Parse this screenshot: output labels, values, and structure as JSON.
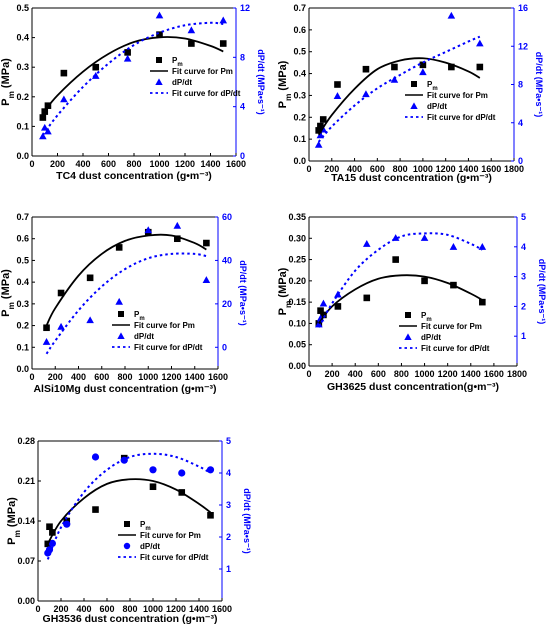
{
  "colors": {
    "pm": "#000000",
    "dpdt": "#0000ff",
    "axis": "#000000"
  },
  "chart_data": [
    {
      "type": "scatter",
      "xlabel": "TC4 dust concentration (g•m⁻³)",
      "ylabel": "Pm (MPa)",
      "ylabel_right": "dP/dt (MPa•s⁻¹)",
      "xlim": [
        0,
        1600
      ],
      "xticks": [
        0,
        200,
        400,
        600,
        800,
        1000,
        1200,
        1400,
        1600
      ],
      "ylim": [
        0,
        0.5
      ],
      "yticks": [
        0.0,
        0.1,
        0.2,
        0.3,
        0.4,
        0.5
      ],
      "ylim_right": [
        0,
        12
      ],
      "yticks_right": [
        0,
        4,
        8,
        12
      ],
      "legend": {
        "placement": "center-right",
        "pm": "Pm",
        "fit_pm": "Fit curve for Pm",
        "dpdt": "dP/dt",
        "fit_dpdt": "Fit curve for dP/dt"
      },
      "series": [
        {
          "name": "Pm",
          "axis": "left",
          "marker": "square",
          "x": [
            85,
            100,
            125,
            250,
            500,
            750,
            1000,
            1250,
            1500
          ],
          "y": [
            0.13,
            0.15,
            0.17,
            0.28,
            0.3,
            0.35,
            0.41,
            0.38,
            0.38
          ]
        },
        {
          "name": "dP/dt",
          "axis": "right",
          "marker": "triangle",
          "x": [
            85,
            100,
            125,
            250,
            500,
            750,
            1000,
            1250,
            1500
          ],
          "y": [
            1.6,
            2.3,
            2.0,
            4.6,
            6.5,
            7.9,
            11.4,
            10.2,
            11.0
          ]
        },
        {
          "name": "Fit curve for Pm",
          "axis": "left",
          "style": "solid",
          "x": [
            85,
            200,
            400,
            600,
            800,
            1000,
            1200,
            1400,
            1500
          ],
          "y": [
            0.145,
            0.205,
            0.285,
            0.345,
            0.385,
            0.401,
            0.397,
            0.372,
            0.353
          ]
        },
        {
          "name": "Fit curve for dP/dt",
          "axis": "right",
          "style": "dotted",
          "x": [
            85,
            200,
            400,
            600,
            800,
            1000,
            1200,
            1400,
            1500
          ],
          "y": [
            1.7,
            3.3,
            5.6,
            7.5,
            9.0,
            10.0,
            10.6,
            10.8,
            10.7
          ]
        }
      ]
    },
    {
      "type": "scatter",
      "xlabel": "TA15 dust concentration (g•m⁻³)",
      "ylabel": "Pm (MPa)",
      "ylabel_right": "dP/dt (MPa•s⁻¹)",
      "xlim": [
        0,
        1800
      ],
      "xticks": [
        0,
        200,
        400,
        600,
        800,
        1000,
        1200,
        1400,
        1600,
        1800
      ],
      "ylim": [
        0,
        0.7
      ],
      "yticks": [
        0.0,
        0.1,
        0.2,
        0.3,
        0.4,
        0.5,
        0.6,
        0.7
      ],
      "ylim_right": [
        0,
        16
      ],
      "yticks_right": [
        0,
        4,
        8,
        12,
        16
      ],
      "legend": {
        "placement": "center-right",
        "pm": "Pm",
        "fit_pm": "Fit curve for Pm",
        "dpdt": "dP/dt",
        "fit_dpdt": "Fit curve for dP/dt"
      },
      "series": [
        {
          "name": "Pm",
          "axis": "left",
          "marker": "square",
          "x": [
            85,
            100,
            125,
            250,
            500,
            750,
            1000,
            1250,
            1500
          ],
          "y": [
            0.14,
            0.16,
            0.19,
            0.35,
            0.42,
            0.43,
            0.44,
            0.43,
            0.43
          ]
        },
        {
          "name": "dP/dt",
          "axis": "right",
          "marker": "triangle",
          "x": [
            85,
            100,
            125,
            250,
            500,
            750,
            1000,
            1250,
            1500
          ],
          "y": [
            1.7,
            2.7,
            3.3,
            6.8,
            7.0,
            8.5,
            9.3,
            15.2,
            12.3
          ]
        },
        {
          "name": "Fit curve for Pm",
          "axis": "left",
          "style": "solid",
          "x": [
            85,
            200,
            400,
            600,
            800,
            1000,
            1200,
            1400,
            1500
          ],
          "y": [
            0.12,
            0.21,
            0.33,
            0.42,
            0.46,
            0.47,
            0.45,
            0.41,
            0.38
          ]
        },
        {
          "name": "Fit curve for dP/dt",
          "axis": "right",
          "style": "dotted",
          "x": [
            85,
            200,
            400,
            600,
            800,
            1000,
            1200,
            1400,
            1500
          ],
          "y": [
            2.0,
            3.6,
            5.8,
            7.6,
            9.0,
            10.3,
            11.4,
            12.5,
            13.0
          ]
        }
      ]
    },
    {
      "type": "scatter",
      "xlabel": "AlSi10Mg dust concentration (g•m⁻³)",
      "ylabel": "Pm (MPa)",
      "ylabel_right": "dP/dt (MPa•s⁻¹)",
      "xlim": [
        0,
        1600
      ],
      "xticks": [
        0,
        200,
        400,
        600,
        800,
        1000,
        1200,
        1400,
        1600
      ],
      "ylim": [
        0,
        0.7
      ],
      "yticks": [
        0.0,
        0.1,
        0.2,
        0.3,
        0.4,
        0.5,
        0.6,
        0.7
      ],
      "ylim_right": [
        -10,
        60
      ],
      "yticks_right": [
        0,
        20,
        40,
        60
      ],
      "legend": {
        "placement": "lower-right",
        "pm": "Pm",
        "fit_pm": "Fit curve for Pm",
        "dpdt": "dP/dt",
        "fit_dpdt": "Fit curve for dP/dt"
      },
      "series": [
        {
          "name": "Pm",
          "axis": "left",
          "marker": "square",
          "x": [
            125,
            250,
            500,
            750,
            1000,
            1250,
            1500
          ],
          "y": [
            0.19,
            0.35,
            0.42,
            0.56,
            0.63,
            0.6,
            0.58
          ]
        },
        {
          "name": "dP/dt",
          "axis": "right",
          "marker": "triangle",
          "x": [
            125,
            250,
            500,
            750,
            1000,
            1250,
            1500
          ],
          "y": [
            2.5,
            9.5,
            12.5,
            21.0,
            54.0,
            56.0,
            31.0
          ]
        },
        {
          "name": "Fit curve for Pm",
          "axis": "left",
          "style": "solid",
          "x": [
            125,
            200,
            400,
            600,
            800,
            1000,
            1200,
            1400,
            1500
          ],
          "y": [
            0.2,
            0.28,
            0.43,
            0.53,
            0.59,
            0.615,
            0.615,
            0.58,
            0.55
          ]
        },
        {
          "name": "Fit curve for dP/dt",
          "axis": "right",
          "style": "dotted",
          "x": [
            125,
            200,
            400,
            600,
            800,
            1000,
            1200,
            1400,
            1500
          ],
          "y": [
            -3,
            3,
            17,
            28,
            36,
            41,
            43,
            43,
            42
          ]
        }
      ]
    },
    {
      "type": "scatter",
      "xlabel": "GH3625 dust concentration(g•m⁻³)",
      "ylabel": "Pm (MPa)",
      "ylabel_right": "dP/dt (MPa•s⁻¹)",
      "xlim": [
        0,
        1800
      ],
      "xticks": [
        0,
        200,
        400,
        600,
        800,
        1000,
        1200,
        1400,
        1600,
        1800
      ],
      "ylim": [
        0,
        0.35
      ],
      "yticks": [
        0.0,
        0.05,
        0.1,
        0.15,
        0.2,
        0.25,
        0.3,
        0.35
      ],
      "ylim_right": [
        0,
        5
      ],
      "yticks_right": [
        1,
        2,
        3,
        4,
        5
      ],
      "legend": {
        "placement": "lower-right",
        "pm": "Pm",
        "fit_pm": "Fit curve for Pm",
        "dpdt": "dP/dt",
        "fit_dpdt": "Fit curve for dP/dt"
      },
      "series": [
        {
          "name": "Pm",
          "axis": "left",
          "marker": "square",
          "x": [
            85,
            100,
            125,
            250,
            500,
            750,
            1000,
            1250,
            1500
          ],
          "y": [
            0.1,
            0.13,
            0.12,
            0.14,
            0.16,
            0.25,
            0.2,
            0.19,
            0.15
          ]
        },
        {
          "name": "dP/dt",
          "axis": "right",
          "marker": "triangle",
          "x": [
            85,
            100,
            125,
            250,
            500,
            750,
            1000,
            1250,
            1500
          ],
          "y": [
            1.4,
            1.6,
            2.1,
            2.4,
            4.1,
            4.3,
            4.3,
            4.0,
            4.0
          ]
        },
        {
          "name": "Fit curve for Pm",
          "axis": "left",
          "style": "solid",
          "x": [
            85,
            200,
            400,
            600,
            800,
            1000,
            1200,
            1400,
            1500
          ],
          "y": [
            0.1,
            0.14,
            0.18,
            0.205,
            0.213,
            0.21,
            0.195,
            0.17,
            0.155
          ]
        },
        {
          "name": "Fit curve for dP/dt",
          "axis": "right",
          "style": "dotted",
          "x": [
            85,
            200,
            400,
            600,
            800,
            1000,
            1200,
            1400,
            1500
          ],
          "y": [
            1.3,
            2.1,
            3.2,
            3.9,
            4.35,
            4.45,
            4.4,
            4.1,
            3.9
          ]
        }
      ]
    },
    {
      "type": "scatter",
      "xlabel": "GH3536 dust concentration (g•m⁻³)",
      "ylabel": "Pm (MPa)",
      "ylabel_right": "dP/dt (MPa•s⁻¹)",
      "xlim": [
        0,
        1600
      ],
      "xticks": [
        0,
        200,
        400,
        600,
        800,
        1000,
        1200,
        1400,
        1600
      ],
      "ylim": [
        0,
        0.28
      ],
      "yticks": [
        0.0,
        0.07,
        0.14,
        0.21,
        0.28
      ],
      "ylim_right": [
        0,
        5
      ],
      "yticks_right": [
        1,
        2,
        3,
        4,
        5
      ],
      "legend": {
        "placement": "lower-right",
        "pm": "Pm",
        "fit_pm": "Fit curve for Pm",
        "dpdt": "dP/dt",
        "fit_dpdt": "Fit curve for dP/dt"
      },
      "series": [
        {
          "name": "Pm",
          "axis": "left",
          "marker": "square",
          "x": [
            85,
            100,
            125,
            250,
            500,
            750,
            1000,
            1250,
            1500
          ],
          "y": [
            0.1,
            0.13,
            0.12,
            0.14,
            0.16,
            0.25,
            0.2,
            0.19,
            0.15
          ]
        },
        {
          "name": "dP/dt",
          "axis": "right",
          "marker": "circle",
          "x": [
            85,
            100,
            125,
            250,
            500,
            750,
            1000,
            1250,
            1500
          ],
          "y": [
            1.5,
            1.6,
            1.8,
            2.4,
            4.5,
            4.4,
            4.1,
            4.0,
            4.1
          ]
        },
        {
          "name": "Fit curve for Pm",
          "axis": "left",
          "style": "solid",
          "x": [
            85,
            200,
            400,
            600,
            800,
            1000,
            1200,
            1400,
            1500
          ],
          "y": [
            0.1,
            0.14,
            0.18,
            0.205,
            0.213,
            0.21,
            0.195,
            0.17,
            0.155
          ]
        },
        {
          "name": "Fit curve for dP/dt",
          "axis": "right",
          "style": "dotted",
          "x": [
            85,
            200,
            400,
            600,
            800,
            1000,
            1200,
            1400,
            1500
          ],
          "y": [
            1.3,
            2.3,
            3.4,
            4.1,
            4.5,
            4.6,
            4.5,
            4.2,
            4.0
          ]
        }
      ]
    }
  ]
}
